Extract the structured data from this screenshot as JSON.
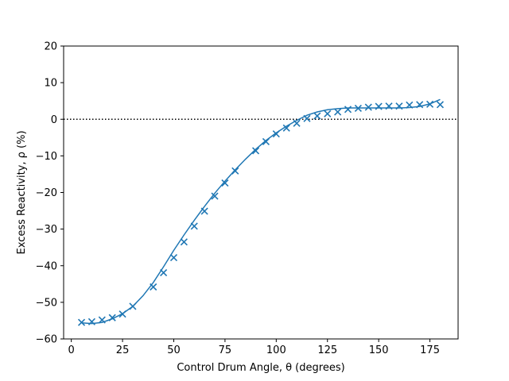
{
  "chart_data": {
    "type": "line",
    "title": "",
    "xlabel": "Control Drum Angle, θ (degrees)",
    "ylabel": "Excess Reactivity, ρ (%)",
    "xlim": [
      -3.75,
      188.75
    ],
    "ylim": [
      -60,
      20
    ],
    "xticks": [
      0,
      25,
      50,
      75,
      100,
      125,
      150,
      175
    ],
    "yticks": [
      -60,
      -50,
      -40,
      -30,
      -20,
      -10,
      0,
      10,
      20
    ],
    "grid": false,
    "legend": "none",
    "reference_line": {
      "y": 0,
      "style": "dotted",
      "color": "#000000"
    },
    "series": [
      {
        "kind": "scatter",
        "marker": "x",
        "color": "#1f77b4",
        "x": [
          5,
          10,
          15,
          20,
          25,
          30,
          40,
          45,
          50,
          55,
          60,
          65,
          70,
          75,
          80,
          90,
          95,
          100,
          105,
          110,
          115,
          120,
          125,
          130,
          135,
          140,
          145,
          150,
          155,
          160,
          165,
          170,
          175,
          180
        ],
        "y": [
          -55.5,
          -55.3,
          -54.8,
          -54.2,
          -53.2,
          -51.1,
          -45.8,
          -41.9,
          -37.8,
          -33.5,
          -29.2,
          -25.1,
          -21.0,
          -17.4,
          -14.1,
          -8.6,
          -6.1,
          -4.0,
          -2.4,
          -1.1,
          0.2,
          0.9,
          1.5,
          2.0,
          2.7,
          3.0,
          3.3,
          3.5,
          3.6,
          3.6,
          3.9,
          4.0,
          4.1,
          4.0
        ]
      },
      {
        "kind": "line",
        "color": "#1f77b4",
        "x": [
          5,
          10,
          15,
          20,
          25,
          30,
          35,
          40,
          45,
          50,
          55,
          60,
          65,
          70,
          75,
          80,
          85,
          90,
          95,
          100,
          105,
          110,
          115,
          120,
          125,
          130,
          135,
          140,
          145,
          150,
          155,
          160,
          165,
          170,
          175,
          180
        ],
        "y": [
          -55.6,
          -55.8,
          -55.5,
          -54.5,
          -53.1,
          -51.1,
          -48.2,
          -44.6,
          -40.3,
          -35.8,
          -31.6,
          -27.6,
          -23.8,
          -20.2,
          -16.9,
          -13.8,
          -10.9,
          -8.2,
          -5.8,
          -3.7,
          -1.9,
          -0.3,
          1.1,
          2.0,
          2.6,
          2.9,
          3.1,
          3.1,
          3.1,
          3.1,
          3.1,
          3.1,
          3.2,
          3.5,
          4.2,
          5.4
        ]
      }
    ]
  }
}
